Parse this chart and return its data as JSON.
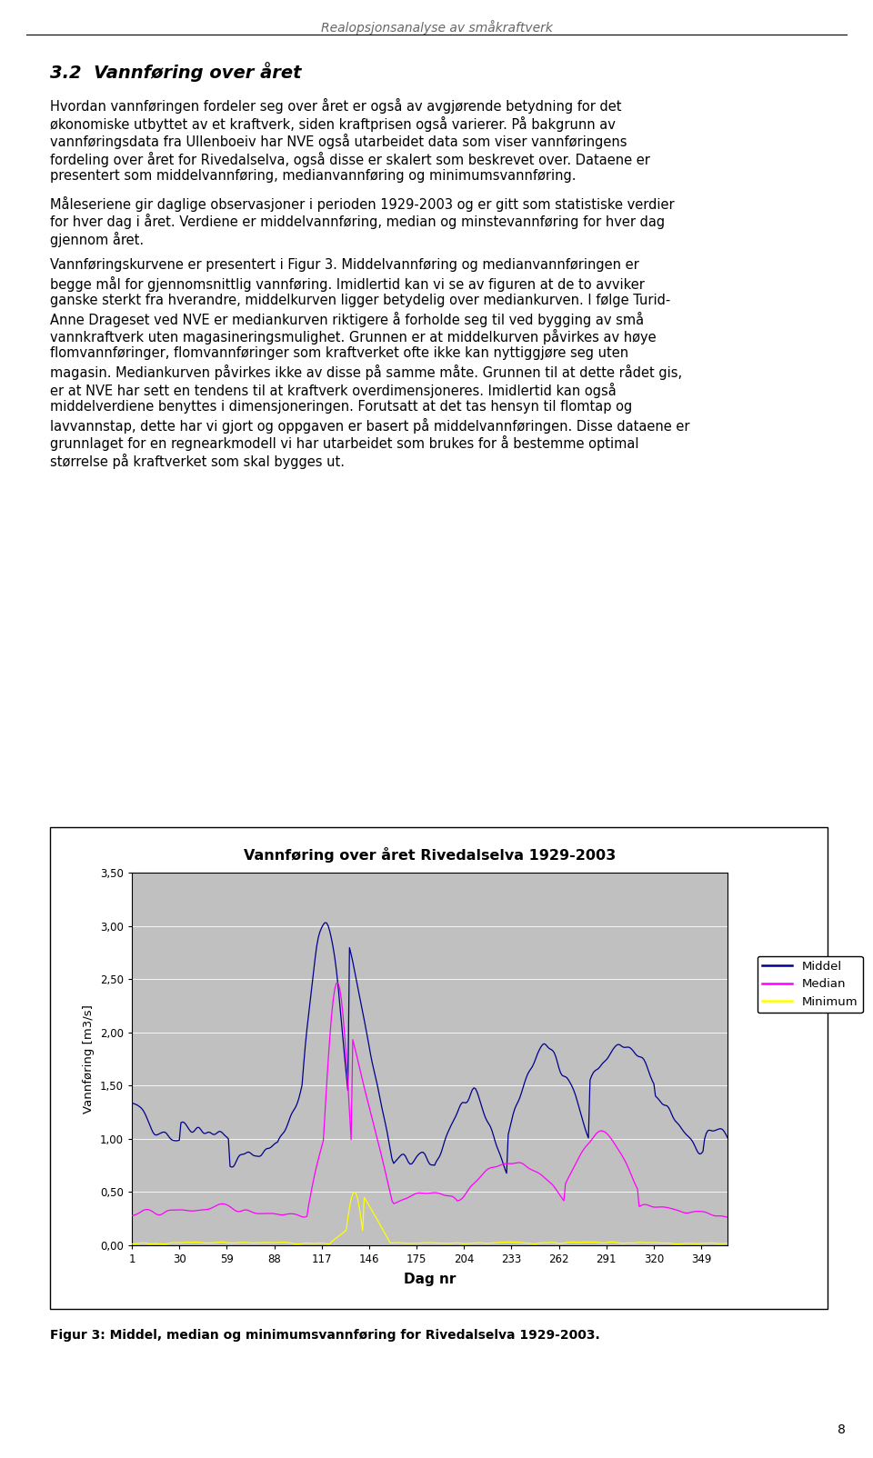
{
  "page_title": "Realopsjonsanalyse av småkraftverk",
  "page_number": "8",
  "section_title": "3.2  Vannføring over året",
  "para1_lines": [
    "Hvordan vannføringen fordeler seg over året er også av avgjørende betydning for det",
    "økonomiske utbyttet av et kraftverk, siden kraftprisen også varierer. På bakgrunn av",
    "vannføringsdata fra Ullenboeiv har NVE også utarbeidet data som viser vannføringens",
    "fordeling over året for Rivedalselva, også disse er skalert som beskrevet over. Dataene er",
    "presentert som middelvannføring, medianvannføring og minimumsvannføring."
  ],
  "para2_lines": [
    "Måleseriene gir daglige observasjoner i perioden 1929-2003 og er gitt som statistiske verdier",
    "for hver dag i året. Verdiene er middelvannføring, median og minstevannføring for hver dag",
    "gjennom året."
  ],
  "para3_lines": [
    "Vannføringskurvene er presentert i Figur 3. Middelvannføring og medianvannføringen er",
    "begge mål for gjennomsnittlig vannføring. Imidlertid kan vi se av figuren at de to avviker",
    "ganske sterkt fra hverandre, middelkurven ligger betydelig over mediankurven. I følge Turid-",
    "Anne Drageset ved NVE er mediankurven riktigere å forholde seg til ved bygging av små",
    "vannkraftverk uten magasineringsmulighet. Grunnen er at middelkurven påvirkes av høye",
    "flomvannføringer, flomvannføringer som kraftverket ofte ikke kan nyttiggjøre seg uten",
    "magasin. Mediankurven påvirkes ikke av disse på samme måte. Grunnen til at dette rådet gis,",
    "er at NVE har sett en tendens til at kraftverk overdimensjoneres. Imidlertid kan også",
    "middelverdiene benyttes i dimensjoneringen. Forutsatt at det tas hensyn til flomtap og",
    "lavvannstap, dette har vi gjort og oppgaven er basert på middelvannføringen. Disse dataene er",
    "grunnlaget for en regnearkmodell vi har utarbeidet som brukes for å bestemme optimal",
    "størrelse på kraftverket som skal bygges ut."
  ],
  "chart_title": "Vannføring over året Rivedalselva 1929-2003",
  "xlabel": "Dag nr",
  "ylabel": "Vannføring [m3/s]",
  "yticks": [
    0.0,
    0.5,
    1.0,
    1.5,
    2.0,
    2.5,
    3.0,
    3.5
  ],
  "ytick_labels": [
    "0,00",
    "0,50",
    "1,00",
    "1,50",
    "2,00",
    "2,50",
    "3,00",
    "3,50"
  ],
  "xticks": [
    1,
    30,
    59,
    88,
    117,
    146,
    175,
    204,
    233,
    262,
    291,
    320,
    349
  ],
  "ylim": [
    0,
    3.5
  ],
  "xlim": [
    1,
    365
  ],
  "legend_labels": [
    "Middel",
    "Median",
    "Minimum"
  ],
  "line_colors": [
    "#00008B",
    "#FF00FF",
    "#FFFF00"
  ],
  "chart_bg": "#C0C0C0",
  "fig_caption": "Figur 3: Middel, median og minimumsvannføring for Rivedalselva 1929-2003."
}
